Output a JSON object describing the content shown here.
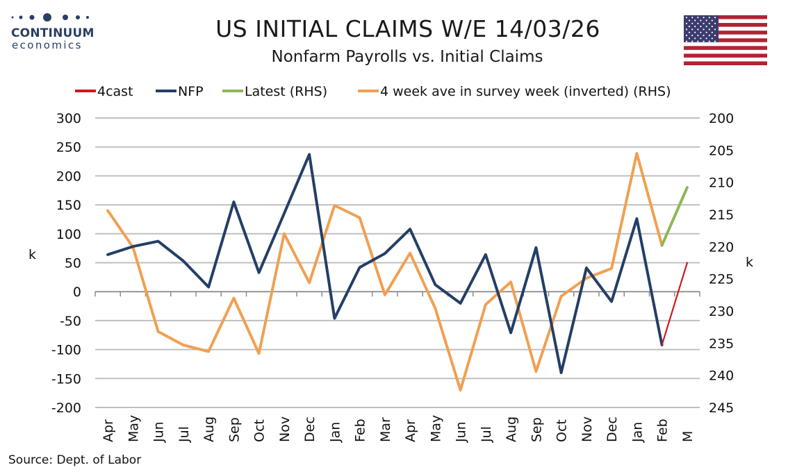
{
  "header": {
    "title": "US INITIAL CLAIMS W/E 14/03/26",
    "subtitle": "Nonfarm Payrolls vs. Initial Claims",
    "logo_line1": "CONTINUUM",
    "logo_line2": "economics"
  },
  "footer": {
    "source": "Source: Dept. of Labor"
  },
  "colors": {
    "forecast": "#d0171d",
    "nfp": "#243f66",
    "latest": "#8fb657",
    "claims_avg": "#f0a052",
    "grid": "#bfbfbf",
    "logo": "#2a3f63",
    "flag_red": "#b22234",
    "flag_blue": "#3c3b6e"
  },
  "chart_data": {
    "type": "line",
    "categories": [
      "Apr",
      "May",
      "Jun",
      "Jul",
      "Aug",
      "Sep",
      "Oct",
      "Nov",
      "Dec",
      "Jan",
      "Feb",
      "Mar",
      "Apr",
      "May",
      "Jun",
      "Jul",
      "Aug",
      "Sep",
      "Oct",
      "Nov",
      "Dec",
      "Jan",
      "Feb",
      "M"
    ],
    "ylabel_left": "k",
    "ylabel_right": "k",
    "ylim_left": [
      -200,
      300
    ],
    "ylim_right": [
      245,
      200
    ],
    "right_axis_inverted": true,
    "yticks_left": [
      300,
      250,
      200,
      150,
      100,
      50,
      0,
      -50,
      -100,
      -150,
      -200
    ],
    "yticks_right": [
      200,
      205,
      210,
      215,
      220,
      225,
      230,
      235,
      240,
      245
    ],
    "grid": true,
    "legend_position": "top",
    "series": [
      {
        "name": "4cast",
        "axis": "left",
        "color_key": "forecast",
        "values": [
          null,
          null,
          null,
          null,
          null,
          null,
          null,
          null,
          null,
          null,
          null,
          null,
          null,
          null,
          null,
          null,
          null,
          null,
          null,
          null,
          null,
          null,
          -92,
          50
        ]
      },
      {
        "name": "NFP",
        "axis": "left",
        "color_key": "nfp",
        "values": [
          64,
          78,
          87,
          53,
          8,
          155,
          33,
          135,
          237,
          -46,
          42,
          66,
          108,
          12,
          -20,
          64,
          -71,
          76,
          -140,
          41,
          -17,
          126,
          -92,
          null
        ]
      },
      {
        "name": "Latest (RHS)",
        "axis": "right",
        "color_key": "latest",
        "values": [
          null,
          null,
          null,
          null,
          null,
          null,
          null,
          null,
          null,
          null,
          null,
          null,
          null,
          null,
          null,
          null,
          null,
          null,
          null,
          null,
          null,
          null,
          219.8,
          210.8
        ]
      },
      {
        "name": "4 week ave in survey week (inverted) (RHS)",
        "axis": "right",
        "color_key": "claims_avg",
        "values": [
          214.4,
          220.1,
          233.2,
          235.3,
          236.3,
          228.0,
          236.6,
          218.0,
          225.6,
          213.6,
          215.5,
          227.5,
          221.0,
          229.6,
          242.3,
          229.0,
          225.5,
          239.4,
          227.7,
          224.9,
          223.4,
          205.5,
          219.8,
          null
        ]
      }
    ]
  }
}
